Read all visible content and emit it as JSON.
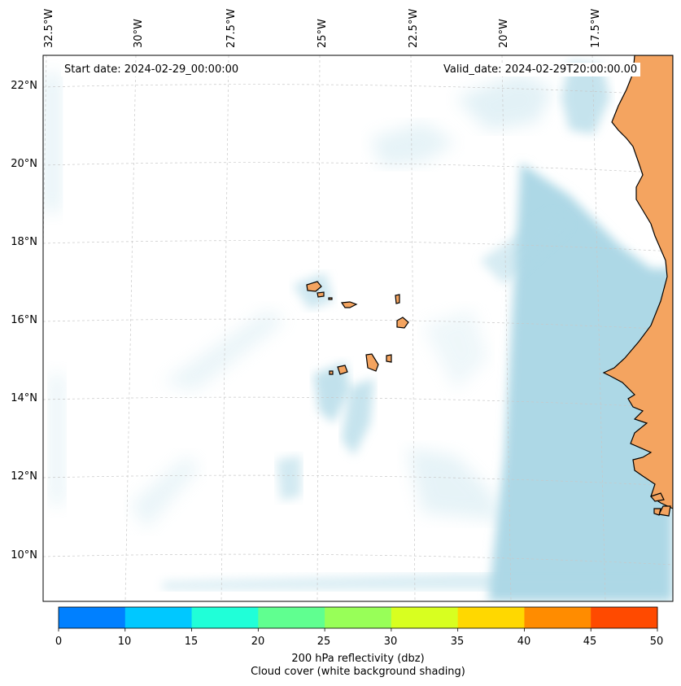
{
  "map": {
    "start_date": "Start date: 2024-02-29_00:00:00",
    "valid_date": "Valid_date: 2024-02-29T20:00:00.00",
    "lon_ticks": [
      "32.5°W",
      "30°W",
      "27.5°W",
      "25°W",
      "22.5°W",
      "20°W",
      "17.5°W"
    ],
    "lat_ticks": [
      "22°N",
      "20°N",
      "18°N",
      "16°N",
      "14°N",
      "12°N",
      "10°N"
    ],
    "colors": {
      "cloud": "#add8e6",
      "land": "#f4a460",
      "gridline": "#c8c8c8"
    }
  },
  "colorbar": {
    "tick_labels": [
      "0",
      "10",
      "15",
      "20",
      "25",
      "30",
      "35",
      "40",
      "45",
      "50"
    ],
    "colors": [
      "#0080ff",
      "#00c8ff",
      "#20ffd8",
      "#60ff90",
      "#98ff58",
      "#d8ff20",
      "#ffd800",
      "#ff8c00",
      "#ff4a00"
    ],
    "title_line1": "200 hPa reflectivity (dbz)",
    "title_line2": "Cloud cover (white background shading)"
  }
}
